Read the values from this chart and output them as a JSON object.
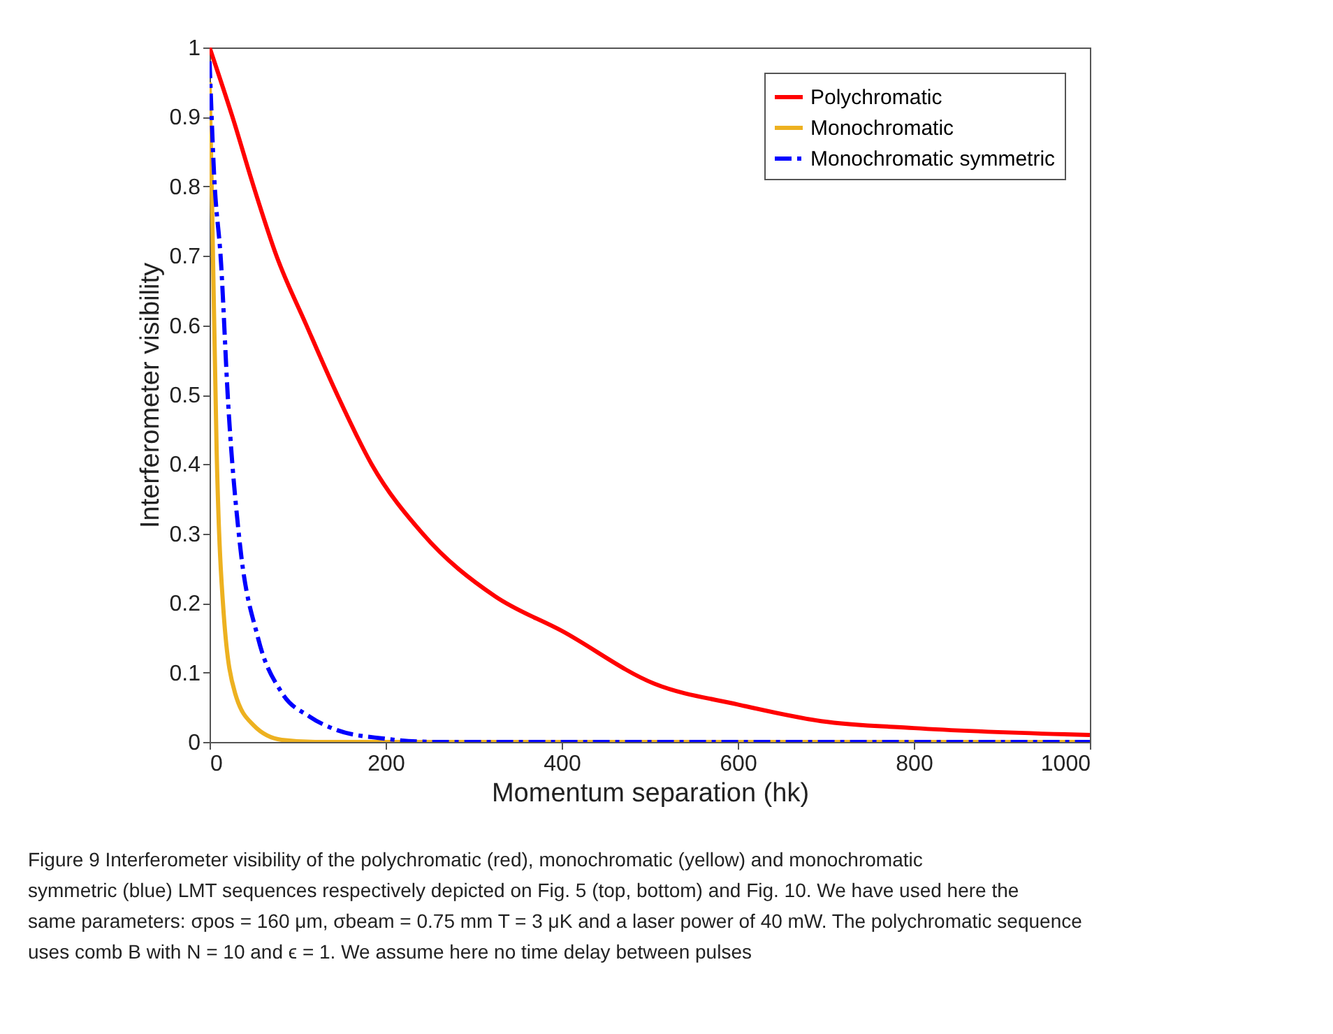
{
  "chart_data": {
    "type": "line",
    "xlabel": "Momentum separation (hk)",
    "ylabel": "Interferometer visibility",
    "xlim": [
      0,
      1000
    ],
    "xticks": [
      0,
      200,
      400,
      600,
      800,
      1000
    ],
    "ylim": [
      0,
      1
    ],
    "yticks": [
      0,
      0.1,
      0.2,
      0.3,
      0.4,
      0.5,
      0.6,
      0.7,
      0.8,
      0.9,
      1
    ],
    "grid": false,
    "legend": "top right",
    "marker": "none",
    "series": [
      {
        "name": "Polychromatic",
        "color": "#ff0000",
        "line_style": "solid",
        "x": [
          0,
          26,
          50,
          76,
          110,
          145,
          184,
          242,
          324,
          400,
          505,
          600,
          695,
          800,
          1000
        ],
        "values": [
          1,
          0.9,
          0.8,
          0.7,
          0.6,
          0.5,
          0.4,
          0.3,
          0.21,
          0.16,
          0.084,
          0.054,
          0.03,
          0.02,
          0.01
        ]
      },
      {
        "name": "Monochromatic",
        "color": "#edb120",
        "line_style": "solid",
        "x": [
          0,
          3,
          8,
          16,
          29,
          50,
          82,
          120,
          1000
        ],
        "values": [
          0.95,
          0.76,
          0.42,
          0.185,
          0.07,
          0.024,
          0.003,
          0,
          0
        ]
      },
      {
        "name": "Monochromatic symmetric",
        "color": "#0000ff",
        "line_style": "dashdot",
        "x": [
          0,
          5,
          13,
          21,
          34,
          55,
          82,
          113,
          145,
          197,
          260,
          1000
        ],
        "values": [
          0.98,
          0.82,
          0.69,
          0.49,
          0.29,
          0.15,
          0.071,
          0.037,
          0.017,
          0.005,
          0,
          0
        ]
      }
    ],
    "annotations": [
      "Figure 9  Interferometer visibility of the polychromatic (red), monochromatic (yellow) and monochromatic symmetric (blue) LMT sequences respectively depicted on Fig. 5 (top, bottom) and Fig. 10. We have used here the same parameters: σpos = 160 μm, σbeam = 0.75 mm T = 3 μK and a laser power of 40 mW. The polychromatic sequence uses comb B with N = 10 and ϵ = 1. We assume here no time delay between pulses"
    ]
  }
}
